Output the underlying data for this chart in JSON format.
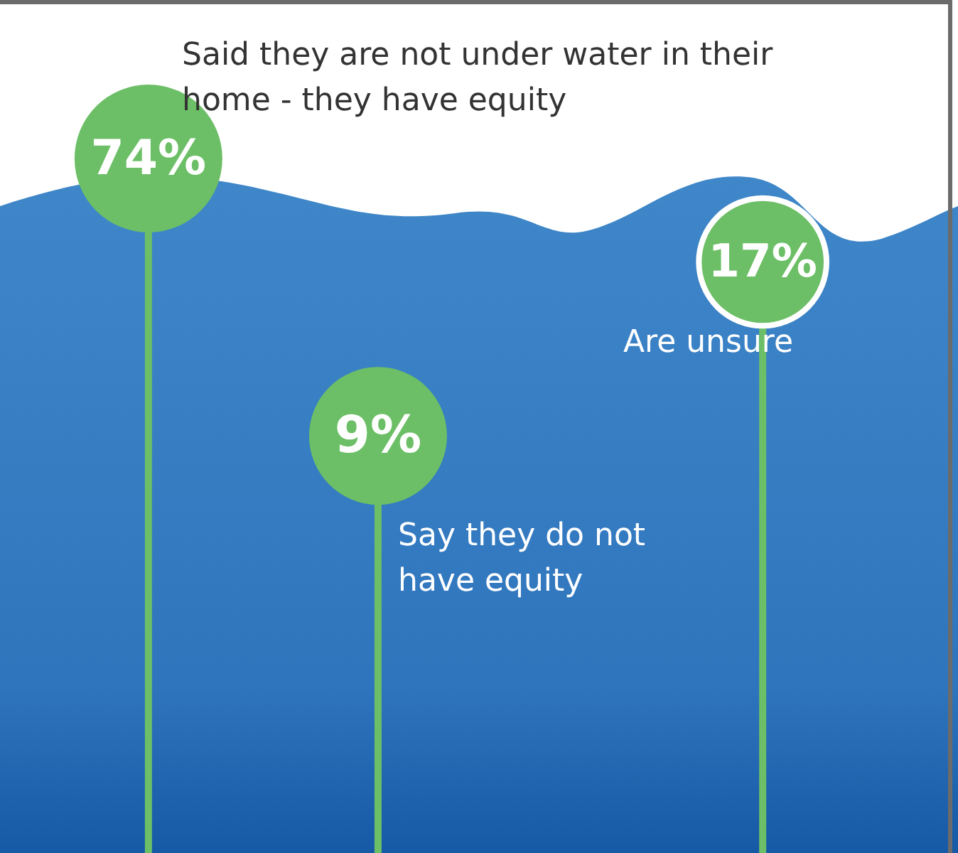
{
  "chart_data": {
    "type": "other",
    "categories": [
      "Said they are not under water in their home - they have equity",
      "Say they do not have equity",
      "Are unsure"
    ],
    "values": [
      74,
      9,
      17
    ],
    "value_labels": [
      "74%",
      "9%",
      "17%"
    ],
    "color": "#6cbf66"
  }
}
